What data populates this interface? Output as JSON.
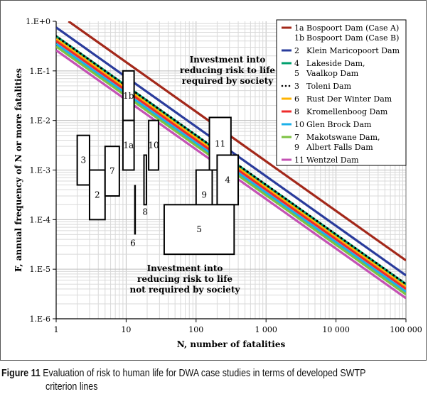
{
  "chart_data": {
    "type": "line",
    "title": "",
    "xlabel": "N, number of fatalities",
    "ylabel": "F, annual frequency of N or more fatalities",
    "xscale": "log",
    "yscale": "log",
    "xlim": [
      1,
      100000
    ],
    "ylim": [
      1e-06,
      1
    ],
    "grid": true,
    "x_tick_labels": [
      "1",
      "10",
      "100",
      "1 000",
      "10 000",
      "100 000"
    ],
    "x_ticks": [
      1,
      10,
      100,
      1000,
      10000,
      100000
    ],
    "y_tick_labels": [
      "1.E+0",
      "1.E-1",
      "1.E-2",
      "1.E-3",
      "1.E-4",
      "1.E-5",
      "1.E-6"
    ],
    "y_ticks": [
      1,
      0.1,
      0.01,
      0.001,
      0.0001,
      1e-05,
      1e-06
    ],
    "legend_position": "top-right",
    "series": [
      {
        "keys": [
          "1a",
          "1b"
        ],
        "names": [
          "Bospoort Dam (Case A)",
          "Bospoort Dam (Case B)"
        ],
        "color": "#a3281a",
        "style": "solid",
        "F_at_N1": 1.5,
        "slope": -1
      },
      {
        "keys": [
          "2"
        ],
        "names": [
          "Klein Maricopoort Dam"
        ],
        "color": "#2a3c9c",
        "style": "solid",
        "F_at_N1": 0.75,
        "slope": -1
      },
      {
        "keys": [
          "4",
          "5"
        ],
        "names": [
          "Lakeside Dam,",
          "Vaalkop Dam"
        ],
        "color": "#00a06e",
        "style": "solid",
        "F_at_N1": 0.5,
        "slope": -1
      },
      {
        "keys": [
          "3"
        ],
        "names": [
          "Toleni Dam"
        ],
        "color": "#000000",
        "style": "dotted",
        "F_at_N1": 0.5,
        "slope": -1
      },
      {
        "keys": [
          "6"
        ],
        "names": [
          "Rust Der Winter Dam"
        ],
        "color": "#ffb300",
        "style": "solid",
        "F_at_N1": 0.44,
        "slope": -1
      },
      {
        "keys": [
          "8"
        ],
        "names": [
          "Kromellenboog Dam"
        ],
        "color": "#ee2b2b",
        "style": "solid",
        "F_at_N1": 0.4,
        "slope": -1
      },
      {
        "keys": [
          "10"
        ],
        "names": [
          "Glen Brock Dam"
        ],
        "color": "#1cb0ea",
        "style": "solid",
        "F_at_N1": 0.35,
        "slope": -1
      },
      {
        "keys": [
          "7",
          "9"
        ],
        "names": [
          "Makotswane Dam,",
          "Albert Falls Dam"
        ],
        "color": "#7cc242",
        "style": "solid",
        "F_at_N1": 0.31,
        "slope": -1
      },
      {
        "keys": [
          "11"
        ],
        "names": [
          "Wentzel Dam"
        ],
        "color": "#c452b4",
        "style": "solid",
        "F_at_N1": 0.26,
        "slope": -1
      }
    ],
    "boxes": [
      {
        "label": "1b",
        "N": [
          9,
          13
        ],
        "F": [
          0.01,
          0.1
        ]
      },
      {
        "label": "1a",
        "N": [
          9,
          13
        ],
        "F": [
          0.001,
          0.01
        ]
      },
      {
        "label": "10",
        "N": [
          21,
          29
        ],
        "F": [
          0.001,
          0.01
        ]
      },
      {
        "label": "3",
        "N": [
          2,
          3
        ],
        "F": [
          0.0005,
          0.005
        ]
      },
      {
        "label": "2",
        "N": [
          3,
          5
        ],
        "F": [
          0.0001,
          0.001
        ]
      },
      {
        "label": "7",
        "N": [
          5,
          8
        ],
        "F": [
          0.0003,
          0.003
        ]
      },
      {
        "label": "6",
        "N": [
          13.4,
          13.4
        ],
        "F": [
          5e-05,
          0.0005
        ]
      },
      {
        "label": "8",
        "N": [
          18,
          19.5
        ],
        "F": [
          0.0002,
          0.002
        ]
      },
      {
        "label": "11",
        "N": [
          155,
          315
        ],
        "F": [
          0.001,
          0.0115
        ]
      },
      {
        "label": "4",
        "N": [
          200,
          400
        ],
        "F": [
          0.0002,
          0.002
        ]
      },
      {
        "label": "9",
        "N": [
          100,
          170
        ],
        "F": [
          0.0001,
          0.001
        ]
      },
      {
        "label": "5",
        "N": [
          35,
          350
        ],
        "F": [
          2e-05,
          0.0002
        ]
      }
    ],
    "annotations": [
      {
        "lines": [
          "Investment into",
          "reducing risk to life",
          "required by society"
        ]
      },
      {
        "lines": [
          "Investment into",
          "reducing risk to life",
          "not required by society"
        ]
      }
    ]
  },
  "caption": {
    "figure_label": "Figure 11",
    "text_line1": "Evaluation of risk to human life for DWA case studies in terms of developed SWTP",
    "text_line2": "criterion lines"
  }
}
